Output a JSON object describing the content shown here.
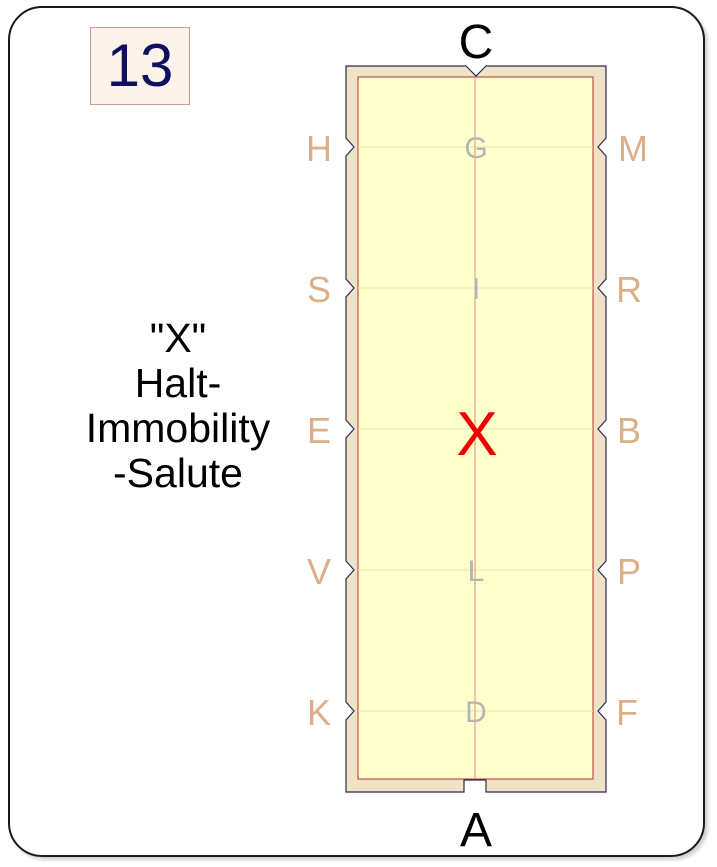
{
  "test_number": "13",
  "movement_lines": [
    "\"X\"",
    "Halt-",
    "Immobility",
    "-Salute"
  ],
  "arena": {
    "end_top": "C",
    "end_bottom": "A",
    "left_markers": [
      "H",
      "S",
      "E",
      "V",
      "K"
    ],
    "right_markers": [
      "M",
      "R",
      "B",
      "P",
      "F"
    ],
    "centerline_markers": [
      "G",
      "I",
      "L",
      "D"
    ],
    "highlight_marker": "X"
  },
  "colors": {
    "arena_fill": "#ffffcc",
    "arena_border": "#f0e2c6",
    "marker_letter": "#d9b088",
    "centerline_letter": "#b4b4b4",
    "highlight": "#ee0000",
    "number": "#101060",
    "number_box_fill": "#fdf3ea"
  }
}
